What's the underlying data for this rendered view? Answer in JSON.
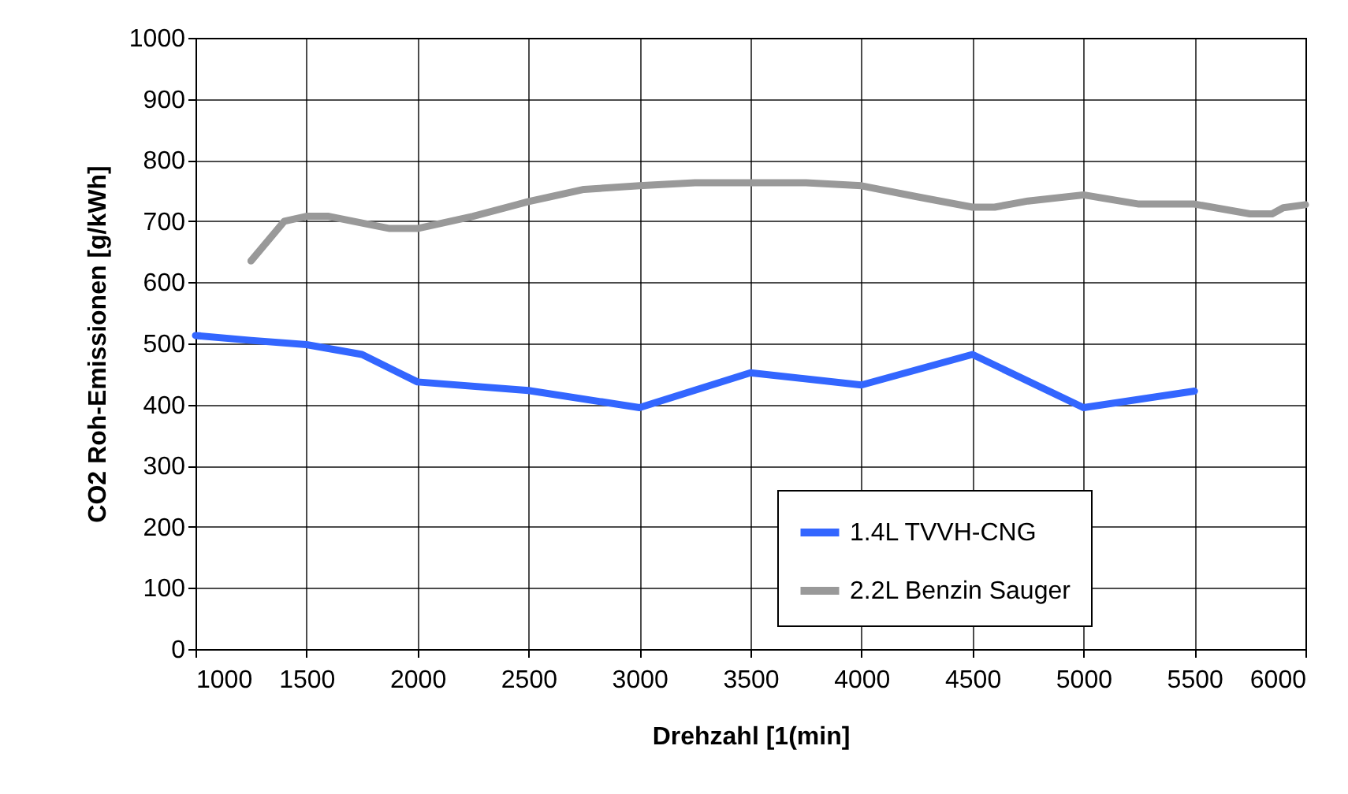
{
  "chart_data": {
    "type": "line",
    "xlabel": "Drehzahl [1(min]",
    "ylabel": "CO2 Roh-Emissionen [g/kWh]",
    "xlim": [
      1000,
      6000
    ],
    "xticks": [
      1000,
      1500,
      2000,
      2500,
      3000,
      3500,
      4000,
      4500,
      5000,
      5500,
      6000
    ],
    "ylim": [
      0,
      1000
    ],
    "yticks": [
      0,
      100,
      200,
      300,
      400,
      500,
      600,
      700,
      800,
      900,
      1000
    ],
    "grid": true,
    "legend": "bottom right",
    "marker": "none",
    "line_style": "solid",
    "series": [
      {
        "name": "1.4L TVVH-CNG",
        "color": "#3366ff",
        "x": [
          1000,
          1250,
          1500,
          1750,
          2000,
          2500,
          3000,
          3500,
          4000,
          4500,
          5000,
          5500
        ],
        "values": [
          513,
          505,
          498,
          482,
          437,
          423,
          395,
          452,
          432,
          482,
          395,
          422
        ]
      },
      {
        "name": "2.2L Benzin Sauger",
        "color": "#999999",
        "x": [
          1250,
          1400,
          1500,
          1600,
          1750,
          1875,
          2000,
          2250,
          2500,
          2750,
          3000,
          3250,
          3500,
          3750,
          4000,
          4250,
          4500,
          4600,
          4750,
          5000,
          5250,
          5500,
          5750,
          5850,
          5900,
          6000
        ],
        "values": [
          635,
          700,
          708,
          708,
          697,
          688,
          688,
          708,
          732,
          752,
          758,
          763,
          763,
          763,
          758,
          740,
          723,
          723,
          733,
          743,
          728,
          728,
          712,
          712,
          722,
          727
        ]
      }
    ]
  }
}
